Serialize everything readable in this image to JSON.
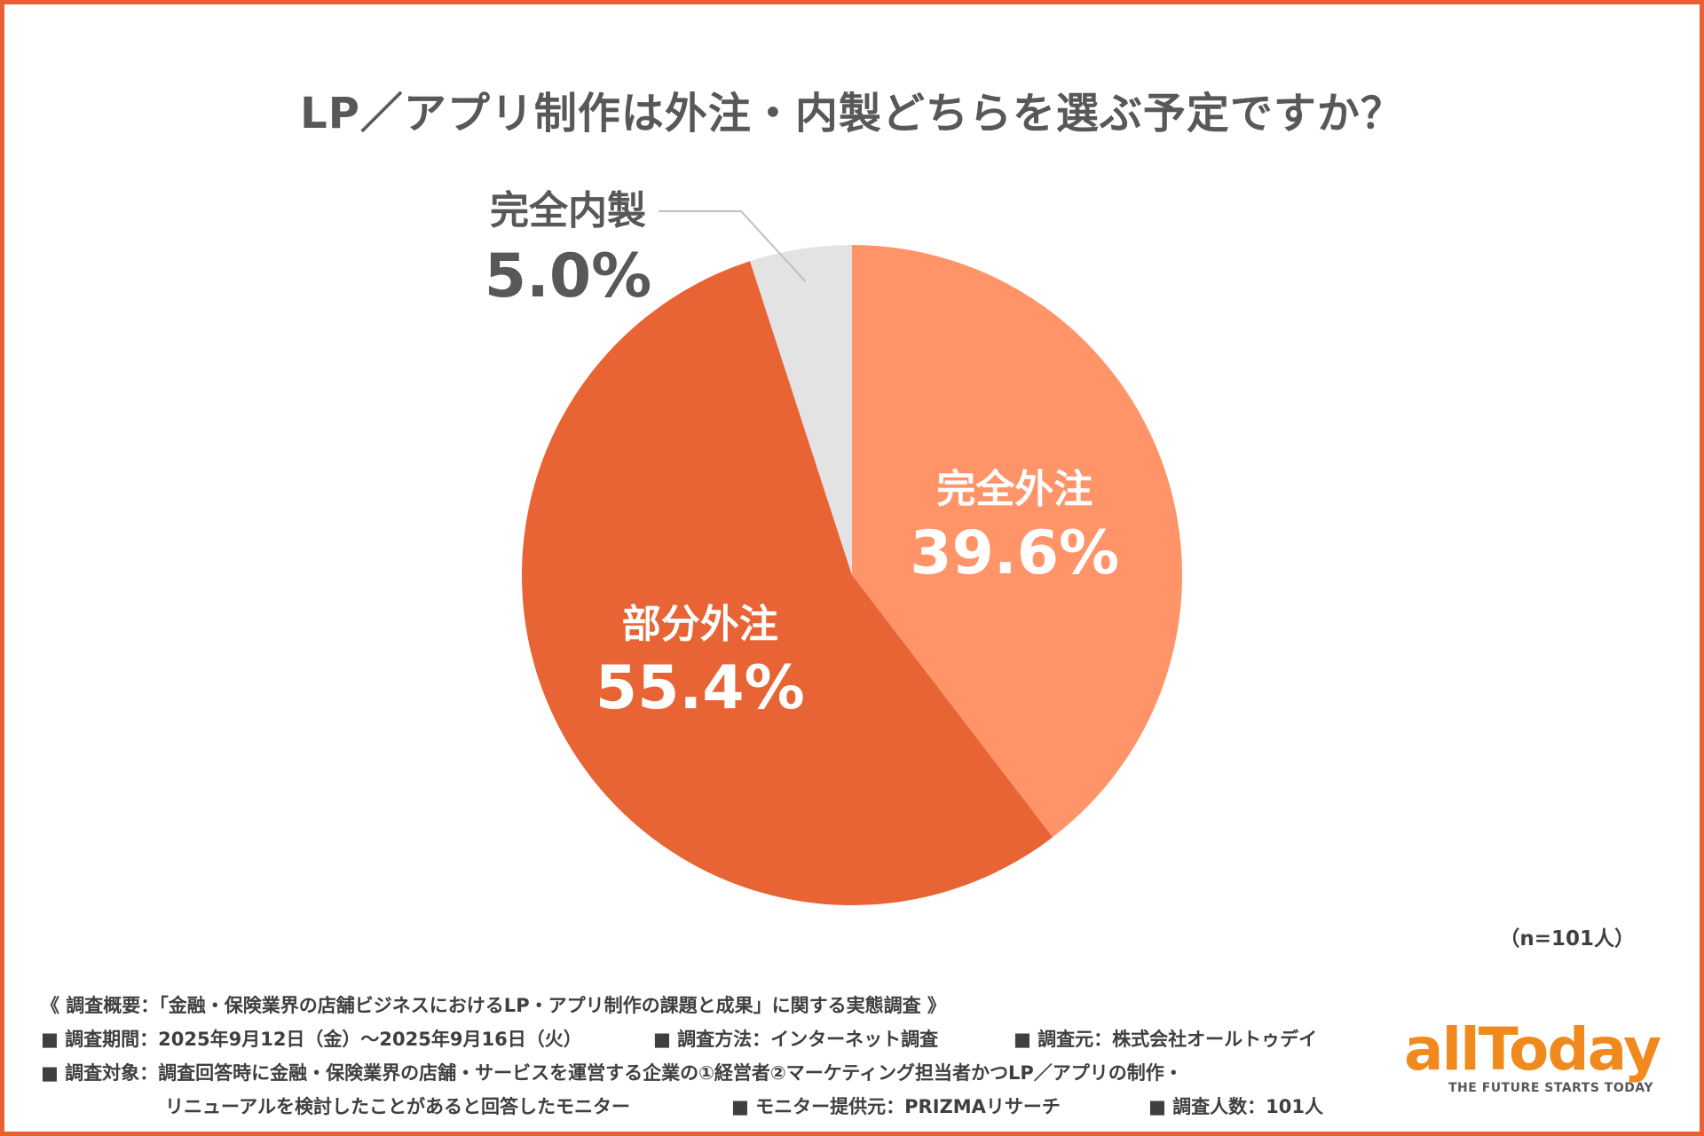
{
  "title": "LP／アプリ制作は外注・内製どちらを選ぶ予定ですか？",
  "chart_data": {
    "type": "pie",
    "title": "LP／アプリ制作は外注・内製どちらを選ぶ予定ですか？",
    "slices": [
      {
        "label": "完全外注",
        "value": 39.6,
        "value_label": "39.6%",
        "color": "#FF9468"
      },
      {
        "label": "部分外注",
        "value": 55.4,
        "value_label": "55.4%",
        "color": "#E86434"
      },
      {
        "label": "完全内製",
        "value": 5.0,
        "value_label": "5.0%",
        "color": "#E3E3E3"
      }
    ],
    "start": "12 o'clock, clockwise",
    "sample_size": "（n=101人）"
  },
  "notes": {
    "summary": "《 調査概要：「金融・保険業界の店舗ビジネスにおけるLP・アプリ制作の課題と成果」に関する実態調査 》",
    "period": "■ 調査期間：2025年9月12日（金）〜2025年9月16日（火）",
    "method": "■ 調査方法：インターネット調査",
    "source": "■ 調査元：株式会社オールトゥデイ",
    "target_line1": "■ 調査対象：調査回答時に金融・保険業界の店舗・サービスを運営する企業の①経営者②マーケティング担当者かつLP／アプリの制作・",
    "target_line2": "リニューアルを検討したことがあると回答したモニター",
    "provider": "■ モニター提供元：PRIZMAリサーチ",
    "count": "■ 調査人数：101人"
  },
  "logo": {
    "word": "allToday",
    "tagline": "THE FUTURE STARTS TODAY",
    "color": "#F08A1E"
  },
  "colors": {
    "border": "#E85F32",
    "text": "#595757"
  }
}
